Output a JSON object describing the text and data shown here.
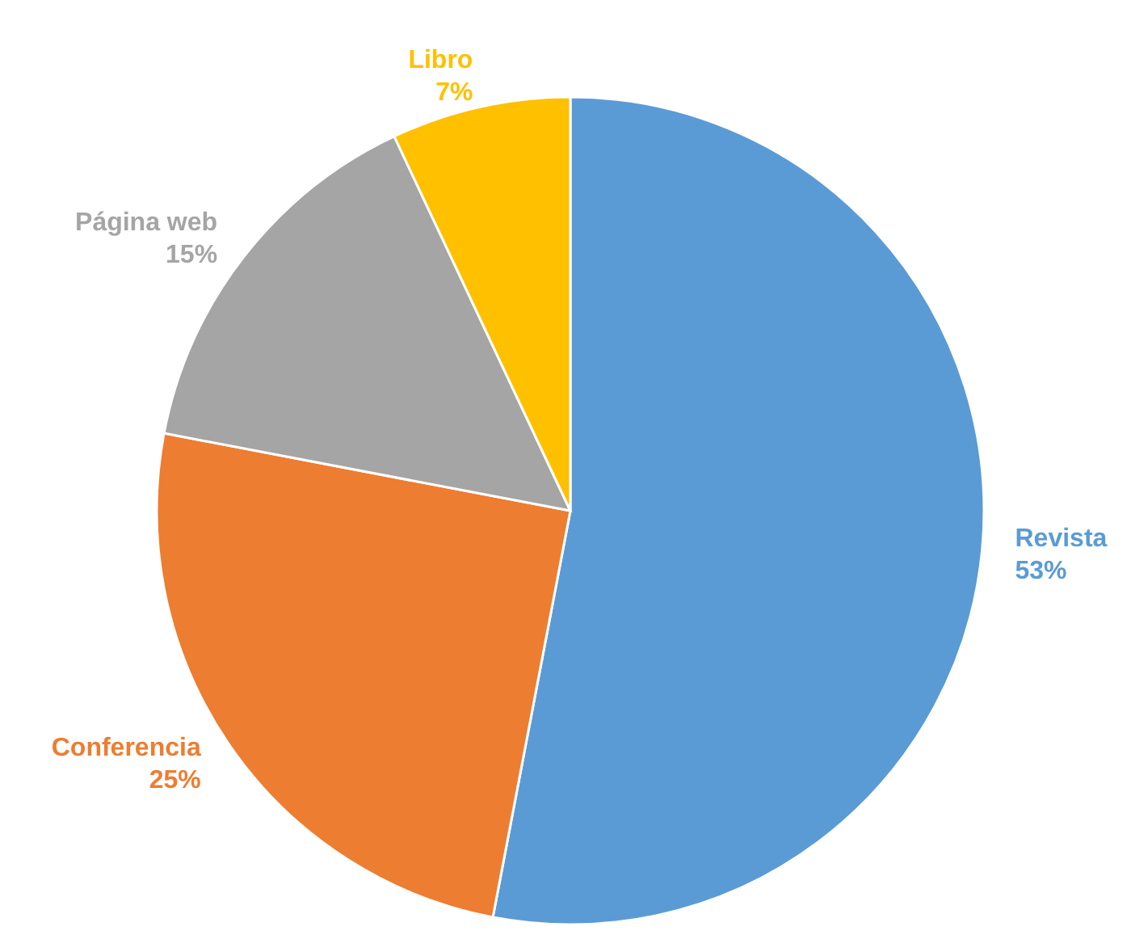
{
  "chart_data": {
    "type": "pie",
    "categories": [
      "Revista",
      "Conferencia",
      "Página web",
      "Libro"
    ],
    "values": [
      53,
      25,
      15,
      7
    ],
    "value_labels": [
      "53%",
      "25%",
      "15%",
      "7%"
    ],
    "colors": [
      "#5b9bd5",
      "#ed7d31",
      "#a5a5a5",
      "#ffc000"
    ]
  }
}
